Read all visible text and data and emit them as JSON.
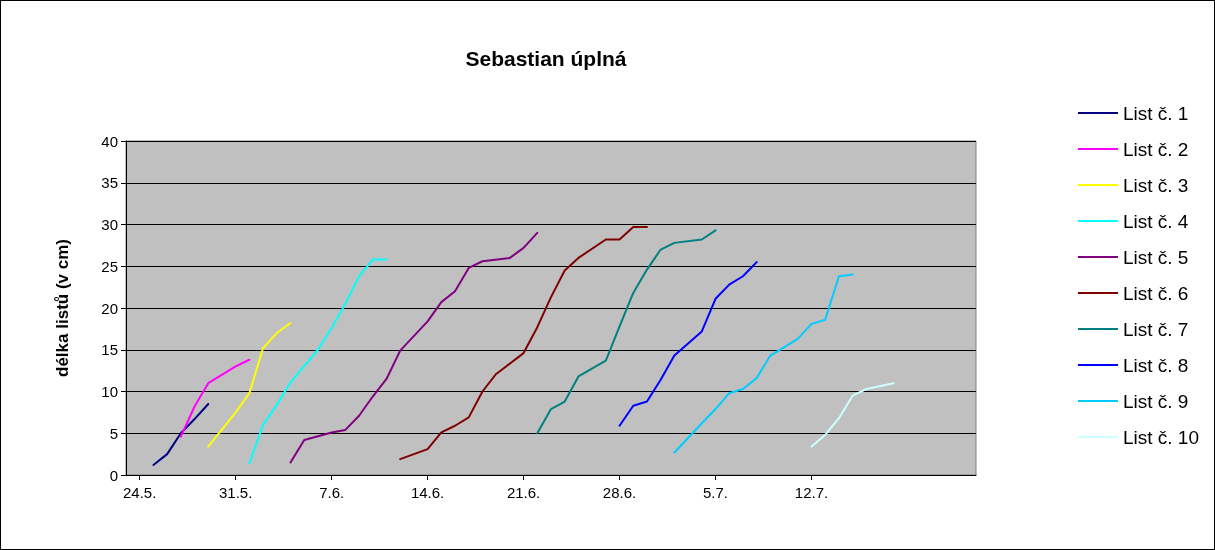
{
  "chart_data": {
    "type": "line",
    "title": "Sebastian úplná",
    "ylabel": "délka listů (v cm)",
    "xlim": [
      "--05-23",
      "--07-24"
    ],
    "xticks": [
      {
        "value": "--05-24",
        "label": "24.5."
      },
      {
        "value": "--05-31",
        "label": "31.5."
      },
      {
        "value": "--06-07",
        "label": "7.6."
      },
      {
        "value": "--06-14",
        "label": "14.6."
      },
      {
        "value": "--06-21",
        "label": "21.6."
      },
      {
        "value": "--06-28",
        "label": "28.6."
      },
      {
        "value": "--07-05",
        "label": "5.7."
      },
      {
        "value": "--07-12",
        "label": "12.7."
      }
    ],
    "ylim": [
      0,
      40
    ],
    "yticks": [
      0,
      5,
      10,
      15,
      20,
      25,
      30,
      35,
      40
    ],
    "grid": "y",
    "legend": "right",
    "marker": "none",
    "line_style": "solid",
    "series": [
      {
        "name": "List č. 1",
        "color": "#000080",
        "x": [
          "--05-25",
          "--05-26",
          "--05-27",
          "--05-28",
          "--05-29"
        ],
        "values": [
          1.2,
          2.5,
          5.0,
          6.7,
          8.5
        ]
      },
      {
        "name": "List č. 2",
        "color": "#ff00ff",
        "x": [
          "--05-27",
          "--05-28",
          "--05-29",
          "--05-31",
          "--06-01"
        ],
        "values": [
          4.6,
          8.2,
          11.0,
          13.0,
          13.8
        ]
      },
      {
        "name": "List č. 3",
        "color": "#ffff00",
        "x": [
          "--05-29",
          "--05-31",
          "--06-01",
          "--06-02",
          "--06-03",
          "--06-04"
        ],
        "values": [
          3.4,
          7.5,
          9.8,
          15.2,
          17.0,
          18.2
        ]
      },
      {
        "name": "List č. 4",
        "color": "#00ffff",
        "x": [
          "--06-01",
          "--06-02",
          "--06-03",
          "--06-04",
          "--06-06",
          "--06-07",
          "--06-08",
          "--06-09",
          "--06-10",
          "--06-11"
        ],
        "values": [
          1.4,
          6.0,
          8.4,
          11.1,
          15.0,
          17.6,
          20.5,
          23.8,
          25.8,
          25.8
        ]
      },
      {
        "name": "List č. 5",
        "color": "#800080",
        "x": [
          "--06-04",
          "--06-05",
          "--06-07",
          "--06-08",
          "--06-09",
          "--06-10",
          "--06-11",
          "--06-12",
          "--06-14",
          "--06-15",
          "--06-16",
          "--06-17",
          "--06-18",
          "--06-20",
          "--06-21",
          "--06-22"
        ],
        "values": [
          1.5,
          4.2,
          5.1,
          5.4,
          7.1,
          9.4,
          11.5,
          14.9,
          18.4,
          20.7,
          22.0,
          24.8,
          25.6,
          26.0,
          27.2,
          29.0
        ]
      },
      {
        "name": "List č. 6",
        "color": "#800000",
        "x": [
          "--06-12",
          "--06-14",
          "--06-15",
          "--06-16",
          "--06-17",
          "--06-18",
          "--06-19",
          "--06-21",
          "--06-22",
          "--06-23",
          "--06-24",
          "--06-25",
          "--06-27",
          "--06-28",
          "--06-29",
          "--06-30"
        ],
        "values": [
          1.9,
          3.1,
          5.1,
          5.9,
          6.9,
          10.0,
          12.1,
          14.6,
          17.7,
          21.3,
          24.5,
          26.0,
          28.2,
          28.2,
          29.7,
          29.7
        ]
      },
      {
        "name": "List č. 7",
        "color": "#008080",
        "x": [
          "--06-22",
          "--06-23",
          "--06-24",
          "--06-25",
          "--06-27",
          "--06-28",
          "--06-29",
          "--06-30",
          "--07-01",
          "--07-02",
          "--07-04",
          "--07-05"
        ],
        "values": [
          5.0,
          7.9,
          8.8,
          11.8,
          13.7,
          17.8,
          21.8,
          24.6,
          27.0,
          27.8,
          28.2,
          29.3
        ]
      },
      {
        "name": "List č. 8",
        "color": "#0000ff",
        "x": [
          "--06-28",
          "--06-29",
          "--06-30",
          "--07-01",
          "--07-02",
          "--07-04",
          "--07-05",
          "--07-06",
          "--07-07",
          "--07-08"
        ],
        "values": [
          5.9,
          8.3,
          8.8,
          11.4,
          14.3,
          17.2,
          21.1,
          22.8,
          23.8,
          25.5
        ]
      },
      {
        "name": "List č. 9",
        "color": "#00ccff",
        "x": [
          "--07-02",
          "--07-04",
          "--07-05",
          "--07-06",
          "--07-07",
          "--07-08",
          "--07-09",
          "--07-11",
          "--07-12",
          "--07-13",
          "--07-14",
          "--07-15"
        ],
        "values": [
          2.7,
          6.2,
          7.9,
          9.8,
          10.3,
          11.6,
          14.3,
          16.3,
          18.1,
          18.6,
          23.8,
          24.0
        ]
      },
      {
        "name": "List č. 10",
        "color": "#ccffff",
        "x": [
          "--07-12",
          "--07-13",
          "--07-14",
          "--07-15",
          "--07-16",
          "--07-18"
        ],
        "values": [
          3.4,
          4.8,
          6.8,
          9.5,
          10.3,
          11.0
        ]
      }
    ]
  }
}
